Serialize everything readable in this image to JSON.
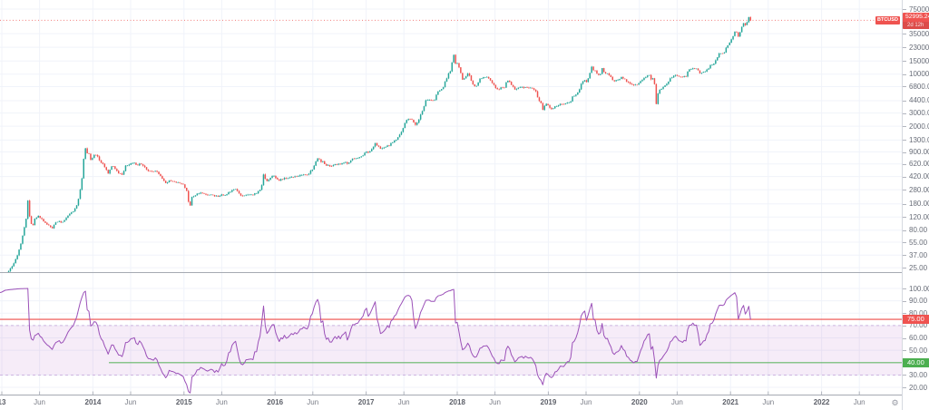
{
  "colors": {
    "up": "#26a69a",
    "down": "#ef5350",
    "rsi_line": "#9b51b8",
    "band_fill": "rgba(156,39,176,0.09)",
    "band_edge": "rgba(156,100,190,0.55)",
    "upper_line": "#ef5350",
    "lower_line": "#4caf50",
    "grid": "#f0f3fa",
    "separator": "#a6aab2",
    "axis_line": "#d6d9e0",
    "axis_text": "#686d78",
    "badge_red": "#ef5350",
    "badge_green": "#4caf50",
    "price_line": "#ef5350"
  },
  "price_badge": {
    "symbol": "BTCUSD",
    "price": "52995.24",
    "countdown": "2d 12h"
  },
  "axis_badges": {
    "upper": "75.00",
    "lower": "40.00"
  },
  "icons": {
    "gear": "⚙"
  },
  "chart_data": {
    "type": "candlestick",
    "symbol": "BTCUSD",
    "scale": "log",
    "grid": true,
    "last_price": 52995.24,
    "price_axis_ticks": [
      75000,
      35000,
      23000,
      15000,
      10000,
      6800,
      4400,
      3000,
      2000,
      1300,
      900,
      620,
      420,
      280,
      180,
      120,
      80,
      55,
      37,
      25
    ],
    "price_axis_visible_range": [
      21,
      99000
    ],
    "rsi_axis_ticks": [
      100,
      90,
      80,
      70,
      60,
      50,
      30,
      20
    ],
    "indicator": {
      "type": "RSI",
      "period": 14,
      "upper_band": 75,
      "lower_band": 40,
      "band_fill": [
        30,
        70
      ]
    },
    "time_ticks": [
      {
        "label": "13",
        "t": 2013,
        "year": true
      },
      {
        "label": "Jun",
        "t": 2013.414,
        "year": false
      },
      {
        "label": "2014",
        "t": 2014,
        "year": true
      },
      {
        "label": "Jun",
        "t": 2014.414,
        "year": false
      },
      {
        "label": "2015",
        "t": 2015,
        "year": true
      },
      {
        "label": "Jun",
        "t": 2015.414,
        "year": false
      },
      {
        "label": "2016",
        "t": 2016,
        "year": true
      },
      {
        "label": "Jun",
        "t": 2016.414,
        "year": false
      },
      {
        "label": "2017",
        "t": 2017,
        "year": true
      },
      {
        "label": "Jun",
        "t": 2017.414,
        "year": false
      },
      {
        "label": "2018",
        "t": 2018,
        "year": true
      },
      {
        "label": "Jun",
        "t": 2018.414,
        "year": false
      },
      {
        "label": "2019",
        "t": 2019,
        "year": true
      },
      {
        "label": "Jun",
        "t": 2019.414,
        "year": false
      },
      {
        "label": "2020",
        "t": 2020,
        "year": true
      },
      {
        "label": "Jun",
        "t": 2020.414,
        "year": false
      },
      {
        "label": "2021",
        "t": 2021,
        "year": true
      },
      {
        "label": "Jun",
        "t": 2021.414,
        "year": false
      },
      {
        "label": "2022",
        "t": 2022,
        "year": true
      },
      {
        "label": "Jun",
        "t": 2022.414,
        "year": false
      }
    ],
    "price_path": [
      [
        2012.5,
        7.0
      ],
      [
        2012.58,
        8.2
      ],
      [
        2012.67,
        10.2
      ],
      [
        2012.75,
        10.9
      ],
      [
        2012.83,
        11.2
      ],
      [
        2012.92,
        13.4
      ],
      [
        2013.0,
        15.5
      ],
      [
        2013.04,
        20
      ],
      [
        2013.08,
        23
      ],
      [
        2013.12,
        27
      ],
      [
        2013.16,
        34
      ],
      [
        2013.2,
        47
      ],
      [
        2013.24,
        78
      ],
      [
        2013.27,
        120
      ],
      [
        2013.29,
        235
      ],
      [
        2013.31,
        100
      ],
      [
        2013.34,
        93
      ],
      [
        2013.37,
        119
      ],
      [
        2013.4,
        122
      ],
      [
        2013.44,
        111
      ],
      [
        2013.48,
        100
      ],
      [
        2013.52,
        91
      ],
      [
        2013.55,
        83
      ],
      [
        2013.58,
        99
      ],
      [
        2013.62,
        106
      ],
      [
        2013.66,
        101
      ],
      [
        2013.7,
        114
      ],
      [
        2013.74,
        131
      ],
      [
        2013.78,
        140
      ],
      [
        2013.82,
        168
      ],
      [
        2013.85,
        232
      ],
      [
        2013.88,
        395
      ],
      [
        2013.9,
        745
      ],
      [
        2013.915,
        1075
      ],
      [
        2013.93,
        815
      ],
      [
        2013.95,
        955
      ],
      [
        2013.97,
        710
      ],
      [
        2014.0,
        772
      ],
      [
        2014.02,
        848
      ],
      [
        2014.05,
        795
      ],
      [
        2014.08,
        672
      ],
      [
        2014.11,
        618
      ],
      [
        2014.14,
        548
      ],
      [
        2014.17,
        445
      ],
      [
        2014.2,
        578
      ],
      [
        2014.23,
        572
      ],
      [
        2014.26,
        498
      ],
      [
        2014.29,
        450
      ],
      [
        2014.32,
        448
      ],
      [
        2014.36,
        585
      ],
      [
        2014.4,
        622
      ],
      [
        2014.44,
        655
      ],
      [
        2014.48,
        598
      ],
      [
        2014.52,
        628
      ],
      [
        2014.56,
        592
      ],
      [
        2014.6,
        512
      ],
      [
        2014.64,
        482
      ],
      [
        2014.68,
        506
      ],
      [
        2014.72,
        458
      ],
      [
        2014.76,
        392
      ],
      [
        2014.8,
        347
      ],
      [
        2014.84,
        378
      ],
      [
        2014.88,
        362
      ],
      [
        2014.92,
        342
      ],
      [
        2014.96,
        352
      ],
      [
        2015.0,
        318
      ],
      [
        2015.03,
        268
      ],
      [
        2015.06,
        160
      ],
      [
        2015.09,
        226
      ],
      [
        2015.13,
        238
      ],
      [
        2015.17,
        256
      ],
      [
        2015.21,
        244
      ],
      [
        2015.25,
        240
      ],
      [
        2015.29,
        236
      ],
      [
        2015.33,
        234
      ],
      [
        2015.37,
        229
      ],
      [
        2015.41,
        236
      ],
      [
        2015.45,
        233
      ],
      [
        2015.49,
        256
      ],
      [
        2015.53,
        270
      ],
      [
        2015.57,
        281
      ],
      [
        2015.6,
        255
      ],
      [
        2015.63,
        229
      ],
      [
        2015.67,
        233
      ],
      [
        2015.71,
        238
      ],
      [
        2015.75,
        240
      ],
      [
        2015.79,
        252
      ],
      [
        2015.83,
        272
      ],
      [
        2015.855,
        332
      ],
      [
        2015.875,
        458
      ],
      [
        2015.9,
        357
      ],
      [
        2015.93,
        380
      ],
      [
        2015.96,
        417
      ],
      [
        2015.99,
        430
      ],
      [
        2016.02,
        384
      ],
      [
        2016.05,
        373
      ],
      [
        2016.09,
        392
      ],
      [
        2016.13,
        402
      ],
      [
        2016.17,
        416
      ],
      [
        2016.21,
        419
      ],
      [
        2016.25,
        426
      ],
      [
        2016.29,
        436
      ],
      [
        2016.33,
        452
      ],
      [
        2016.37,
        457
      ],
      [
        2016.41,
        532
      ],
      [
        2016.445,
        668
      ],
      [
        2016.47,
        758
      ],
      [
        2016.5,
        678
      ],
      [
        2016.53,
        658
      ],
      [
        2016.56,
        602
      ],
      [
        2016.6,
        576
      ],
      [
        2016.64,
        592
      ],
      [
        2016.68,
        612
      ],
      [
        2016.72,
        616
      ],
      [
        2016.76,
        641
      ],
      [
        2016.8,
        636
      ],
      [
        2016.84,
        712
      ],
      [
        2016.88,
        732
      ],
      [
        2016.92,
        747
      ],
      [
        2016.96,
        792
      ],
      [
        2017.0,
        902
      ],
      [
        2017.03,
        892
      ],
      [
        2017.06,
        996
      ],
      [
        2017.1,
        1188
      ],
      [
        2017.13,
        1082
      ],
      [
        2017.16,
        978
      ],
      [
        2017.19,
        1012
      ],
      [
        2017.22,
        1082
      ],
      [
        2017.25,
        1092
      ],
      [
        2017.28,
        1188
      ],
      [
        2017.31,
        1262
      ],
      [
        2017.34,
        1352
      ],
      [
        2017.37,
        1592
      ],
      [
        2017.4,
        1782
      ],
      [
        2017.43,
        2302
      ],
      [
        2017.46,
        2552
      ],
      [
        2017.48,
        2482
      ],
      [
        2017.51,
        2422
      ],
      [
        2017.54,
        2062
      ],
      [
        2017.57,
        2262
      ],
      [
        2017.6,
        2872
      ],
      [
        2017.63,
        3402
      ],
      [
        2017.66,
        4702
      ],
      [
        2017.69,
        4392
      ],
      [
        2017.72,
        4342
      ],
      [
        2017.75,
        4402
      ],
      [
        2017.78,
        5752
      ],
      [
        2017.81,
        6152
      ],
      [
        2017.84,
        6452
      ],
      [
        2017.87,
        8002
      ],
      [
        2017.9,
        9902
      ],
      [
        2017.93,
        11102
      ],
      [
        2017.95,
        16702
      ],
      [
        2017.965,
        19002
      ],
      [
        2017.98,
        14102
      ],
      [
        2018.0,
        13802
      ],
      [
        2018.03,
        11302
      ],
      [
        2018.06,
        8302
      ],
      [
        2018.09,
        9302
      ],
      [
        2018.12,
        10302
      ],
      [
        2018.15,
        8502
      ],
      [
        2018.18,
        7002
      ],
      [
        2018.21,
        6932
      ],
      [
        2018.24,
        8302
      ],
      [
        2018.27,
        8902
      ],
      [
        2018.3,
        9252
      ],
      [
        2018.33,
        9002
      ],
      [
        2018.36,
        8502
      ],
      [
        2018.39,
        7502
      ],
      [
        2018.42,
        6452
      ],
      [
        2018.45,
        6152
      ],
      [
        2018.48,
        6702
      ],
      [
        2018.51,
        6402
      ],
      [
        2018.54,
        7732
      ],
      [
        2018.57,
        8202
      ],
      [
        2018.6,
        7032
      ],
      [
        2018.63,
        6252
      ],
      [
        2018.66,
        6502
      ],
      [
        2018.69,
        6632
      ],
      [
        2018.72,
        6702
      ],
      [
        2018.75,
        6602
      ],
      [
        2018.78,
        6452
      ],
      [
        2018.81,
        6472
      ],
      [
        2018.84,
        6302
      ],
      [
        2018.87,
        5602
      ],
      [
        2018.89,
        4402
      ],
      [
        2018.92,
        4022
      ],
      [
        2018.94,
        3232
      ],
      [
        2018.97,
        3982
      ],
      [
        2019.0,
        3742
      ],
      [
        2019.03,
        3442
      ],
      [
        2019.06,
        3562
      ],
      [
        2019.09,
        3652
      ],
      [
        2019.12,
        3862
      ],
      [
        2019.15,
        3922
      ],
      [
        2019.18,
        3952
      ],
      [
        2019.21,
        4052
      ],
      [
        2019.24,
        4102
      ],
      [
        2019.27,
        5052
      ],
      [
        2019.3,
        5322
      ],
      [
        2019.33,
        5752
      ],
      [
        2019.36,
        7202
      ],
      [
        2019.39,
        8562
      ],
      [
        2019.42,
        8002
      ],
      [
        2019.44,
        9102
      ],
      [
        2019.46,
        10802
      ],
      [
        2019.48,
        12902
      ],
      [
        2019.5,
        11002
      ],
      [
        2019.52,
        11502
      ],
      [
        2019.54,
        9802
      ],
      [
        2019.57,
        10092
      ],
      [
        2019.59,
        11902
      ],
      [
        2019.62,
        10302
      ],
      [
        2019.65,
        10102
      ],
      [
        2019.68,
        9602
      ],
      [
        2019.71,
        8282
      ],
      [
        2019.74,
        8102
      ],
      [
        2019.77,
        8252
      ],
      [
        2019.8,
        9152
      ],
      [
        2019.83,
        8552
      ],
      [
        2019.86,
        8002
      ],
      [
        2019.89,
        7552
      ],
      [
        2019.92,
        7252
      ],
      [
        2019.95,
        7102
      ],
      [
        2019.98,
        7192
      ],
      [
        2020.01,
        8002
      ],
      [
        2020.04,
        8602
      ],
      [
        2020.07,
        9352
      ],
      [
        2020.1,
        9902
      ],
      [
        2020.13,
        8532
      ],
      [
        2020.16,
        8902
      ],
      [
        2020.185,
        4000
      ],
      [
        2020.21,
        6202
      ],
      [
        2020.24,
        6442
      ],
      [
        2020.27,
        6902
      ],
      [
        2020.3,
        7302
      ],
      [
        2020.33,
        8632
      ],
      [
        2020.36,
        9002
      ],
      [
        2020.39,
        9702
      ],
      [
        2020.42,
        9452
      ],
      [
        2020.45,
        9142
      ],
      [
        2020.48,
        9202
      ],
      [
        2020.51,
        9252
      ],
      [
        2020.54,
        11322
      ],
      [
        2020.57,
        11902
      ],
      [
        2020.6,
        11752
      ],
      [
        2020.63,
        11652
      ],
      [
        2020.66,
        10402
      ],
      [
        2020.69,
        10552
      ],
      [
        2020.72,
        10782
      ],
      [
        2020.75,
        11502
      ],
      [
        2020.78,
        13002
      ],
      [
        2020.81,
        13802
      ],
      [
        2020.84,
        15502
      ],
      [
        2020.87,
        18702
      ],
      [
        2020.9,
        19202
      ],
      [
        2020.93,
        19702
      ],
      [
        2020.96,
        23802
      ],
      [
        2020.985,
        26502
      ],
      [
        2021.01,
        29402
      ],
      [
        2021.03,
        33102
      ],
      [
        2021.05,
        38202
      ],
      [
        2021.07,
        35502
      ],
      [
        2021.09,
        32302
      ],
      [
        2021.11,
        38102
      ],
      [
        2021.13,
        46202
      ],
      [
        2021.15,
        48902
      ],
      [
        2021.165,
        45242
      ],
      [
        2021.18,
        49602
      ],
      [
        2021.2,
        57302
      ],
      [
        2021.215,
        59002
      ],
      [
        2021.225,
        52995.24
      ]
    ]
  }
}
